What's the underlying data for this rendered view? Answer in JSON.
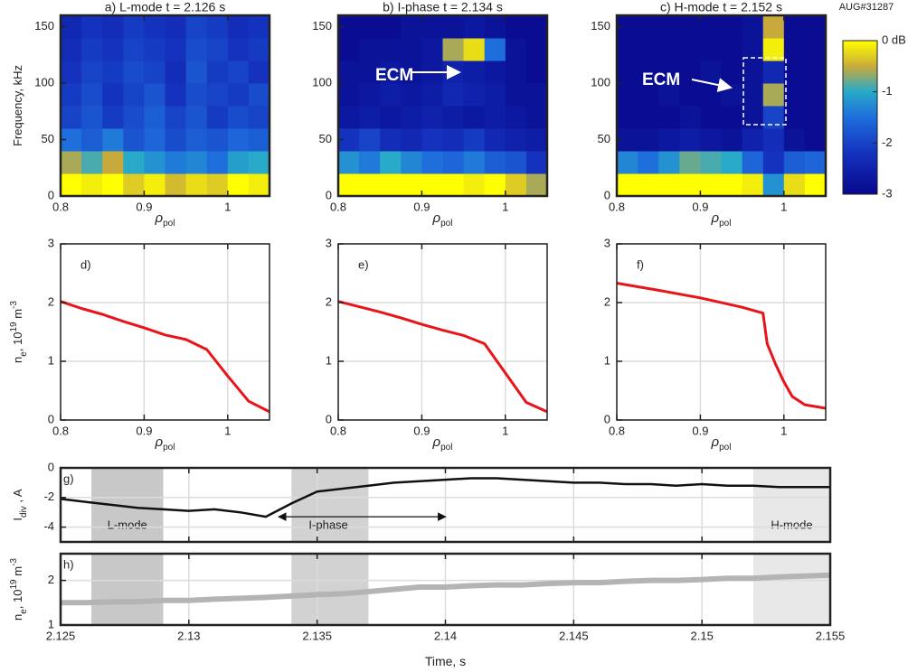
{
  "figure_note": "AUG#31287",
  "chart_data": [
    {
      "type": "heatmap",
      "title": "a) L-mode t = 2.126 s",
      "xlim": [
        0.8,
        1.05
      ],
      "ylim": [
        0,
        160
      ],
      "xticks": [
        0.8,
        0.9,
        1
      ],
      "yticks": [
        0,
        50,
        100,
        150
      ],
      "xlabel": [
        {
          "text": "ρ"
        },
        {
          "text": "pol",
          "sub": true
        }
      ],
      "ylabel": [
        {
          "text": "Frequency, kHz"
        }
      ],
      "z": [
        [
          0,
          -0.1,
          0,
          -0.3,
          -0.1,
          -0.4,
          -0.2,
          -0.3,
          0,
          -0.1
        ],
        [
          -0.6,
          -0.9,
          -0.5,
          -1.0,
          -1.2,
          -1.4,
          -1.3,
          -1.5,
          -1.1,
          -1.0
        ],
        [
          -1.5,
          -1.7,
          -1.4,
          -1.8,
          -1.6,
          -1.9,
          -1.7,
          -1.8,
          -1.6,
          -1.7
        ],
        [
          -2.0,
          -1.8,
          -2.1,
          -1.9,
          -1.7,
          -2.0,
          -1.8,
          -2.1,
          -1.9,
          -2.0
        ],
        [
          -2.1,
          -1.9,
          -2.2,
          -2.0,
          -1.8,
          -2.2,
          -1.9,
          -2.0,
          -2.1,
          -1.9
        ],
        [
          -2.2,
          -2.0,
          -2.1,
          -1.9,
          -2.0,
          -2.3,
          -1.8,
          -2.1,
          -2.0,
          -2.2
        ],
        [
          -2.3,
          -2.1,
          -2.2,
          -2.0,
          -2.1,
          -2.2,
          -1.9,
          -2.0,
          -2.2,
          -2.1
        ],
        [
          -2.4,
          -2.2,
          -2.3,
          -2.1,
          -2.2,
          -2.3,
          -2.0,
          -2.1,
          -2.3,
          -2.2
        ]
      ]
    },
    {
      "type": "heatmap",
      "title": "b) I-phase t = 2.134 s",
      "xlim": [
        0.8,
        1.05
      ],
      "ylim": [
        0,
        160
      ],
      "xticks": [
        0.8,
        0.9,
        1
      ],
      "yticks": [
        0,
        50,
        100,
        150
      ],
      "xlabel": [
        {
          "text": "ρ"
        },
        {
          "text": "pol",
          "sub": true
        }
      ],
      "annotations": [
        {
          "text": "ECM"
        }
      ],
      "z": [
        [
          0,
          0,
          0,
          0,
          0,
          0,
          -0.1,
          0,
          -0.3,
          -0.6
        ],
        [
          -1.2,
          -1.4,
          -1.0,
          -1.3,
          -1.5,
          -1.6,
          -1.4,
          -1.7,
          -1.8,
          -2.2
        ],
        [
          -2.2,
          -2.0,
          -2.3,
          -2.4,
          -2.2,
          -2.3,
          -2.1,
          -2.4,
          -2.5,
          -2.6
        ],
        [
          -2.7,
          -2.6,
          -2.7,
          -2.6,
          -2.5,
          -2.6,
          -2.7,
          -2.6,
          -2.7,
          -2.8
        ],
        [
          -2.8,
          -2.7,
          -2.6,
          -2.7,
          -2.6,
          -2.4,
          -2.5,
          -2.6,
          -2.8,
          -2.8
        ],
        [
          -2.8,
          -2.8,
          -2.7,
          -2.8,
          -2.7,
          -2.5,
          -2.6,
          -2.7,
          -2.8,
          -2.9
        ],
        [
          -2.9,
          -2.8,
          -2.8,
          -2.8,
          -2.7,
          -0.6,
          -0.2,
          -1.5,
          -2.8,
          -2.9
        ],
        [
          -2.9,
          -2.9,
          -2.9,
          -2.8,
          -2.8,
          -2.8,
          -2.7,
          -2.8,
          -2.9,
          -2.9
        ]
      ]
    },
    {
      "type": "heatmap",
      "title": "c) H-mode t = 2.152 s",
      "xlim": [
        0.8,
        1.05
      ],
      "ylim": [
        0,
        160
      ],
      "xticks": [
        0.8,
        0.9,
        1
      ],
      "yticks": [
        0,
        50,
        100,
        150
      ],
      "xlabel": [
        {
          "text": "ρ"
        },
        {
          "text": "pol",
          "sub": true
        }
      ],
      "annotations": [
        {
          "text": "ECM"
        }
      ],
      "z": [
        [
          0,
          0,
          0,
          0,
          0,
          0,
          -0.1,
          -1.2,
          -0.2,
          0
        ],
        [
          -1.3,
          -1.5,
          -1.2,
          -0.8,
          -0.9,
          -1.0,
          -1.6,
          -2.2,
          -1.7,
          -1.6
        ],
        [
          -2.8,
          -2.8,
          -2.7,
          -2.6,
          -2.7,
          -2.8,
          -2.5,
          -2.3,
          -2.8,
          -2.9
        ],
        [
          -2.9,
          -2.9,
          -2.9,
          -2.8,
          -2.9,
          -2.9,
          -2.8,
          -2.0,
          -2.9,
          -2.9
        ],
        [
          -2.9,
          -2.9,
          -2.8,
          -2.9,
          -2.9,
          -2.8,
          -2.8,
          -0.6,
          -2.9,
          -2.9
        ],
        [
          -2.9,
          -2.9,
          -2.9,
          -2.9,
          -2.8,
          -2.9,
          -2.8,
          -2.4,
          -2.9,
          -2.9
        ],
        [
          -2.9,
          -2.9,
          -2.9,
          -2.9,
          -2.9,
          -2.9,
          -2.8,
          -0.1,
          -2.9,
          -2.9
        ],
        [
          -2.9,
          -2.9,
          -2.9,
          -2.9,
          -2.9,
          -2.9,
          -2.8,
          -0.5,
          -2.9,
          -2.9
        ]
      ]
    },
    {
      "type": "colorbar",
      "ylim": [
        -3,
        0
      ],
      "yticks": [
        {
          "value": 0,
          "label": "0 dB"
        },
        -1,
        -2,
        -3
      ]
    },
    {
      "type": "line",
      "panel_label": "d)",
      "color": "#e8141a",
      "grid": true,
      "xlim": [
        0.8,
        1.05
      ],
      "ylim": [
        0,
        3
      ],
      "xticks": [
        0.8,
        0.9,
        1
      ],
      "yticks": [
        0,
        1,
        2,
        3
      ],
      "xlabel": [
        {
          "text": "ρ"
        },
        {
          "text": "pol",
          "sub": true
        }
      ],
      "ylabel": [
        {
          "text": "n"
        },
        {
          "text": "e",
          "sub": true
        },
        {
          "text": ", 10"
        },
        {
          "text": "19",
          "sup": true
        },
        {
          "text": " m"
        },
        {
          "text": "-3",
          "sup": true
        }
      ],
      "x": [
        0.8,
        0.825,
        0.85,
        0.875,
        0.9,
        0.925,
        0.95,
        0.975,
        1.0,
        1.025,
        1.05
      ],
      "values": [
        2.02,
        1.9,
        1.8,
        1.68,
        1.57,
        1.45,
        1.37,
        1.2,
        0.75,
        0.32,
        0.14
      ]
    },
    {
      "type": "line",
      "panel_label": "e)",
      "color": "#e8141a",
      "grid": true,
      "xlim": [
        0.8,
        1.05
      ],
      "ylim": [
        0,
        3
      ],
      "xticks": [
        0.8,
        0.9,
        1
      ],
      "yticks": [
        0,
        1,
        2,
        3
      ],
      "xlabel": [
        {
          "text": "ρ"
        },
        {
          "text": "pol",
          "sub": true
        }
      ],
      "x": [
        0.8,
        0.825,
        0.85,
        0.875,
        0.9,
        0.925,
        0.95,
        0.975,
        1.0,
        1.025,
        1.05
      ],
      "values": [
        2.02,
        1.93,
        1.84,
        1.74,
        1.63,
        1.53,
        1.44,
        1.3,
        0.8,
        0.3,
        0.14
      ]
    },
    {
      "type": "line",
      "panel_label": "f)",
      "color": "#e8141a",
      "grid": true,
      "xlim": [
        0.8,
        1.05
      ],
      "ylim": [
        0,
        3
      ],
      "xticks": [
        0.8,
        0.9,
        1
      ],
      "yticks": [
        0,
        1,
        2,
        3
      ],
      "xlabel": [
        {
          "text": "ρ"
        },
        {
          "text": "pol",
          "sub": true
        }
      ],
      "x": [
        0.8,
        0.85,
        0.9,
        0.95,
        0.975,
        0.98,
        0.99,
        1.0,
        1.01,
        1.025,
        1.05
      ],
      "values": [
        2.33,
        2.21,
        2.08,
        1.92,
        1.82,
        1.3,
        0.95,
        0.65,
        0.4,
        0.26,
        0.2
      ]
    },
    {
      "type": "line",
      "panel_label": "g)",
      "color": "#111111",
      "grid": true,
      "xlim": [
        2.125,
        2.155
      ],
      "ylim": [
        -5,
        0
      ],
      "xticks": [
        2.125,
        2.13,
        2.135,
        2.14,
        2.145,
        2.15,
        2.155
      ],
      "xtick_labels": false,
      "yticks": [
        0,
        -2,
        -4
      ],
      "ylabel": [
        {
          "text": "I"
        },
        {
          "text": "div",
          "sub": true
        },
        {
          "text": " , A"
        }
      ],
      "spans": [
        {
          "start": 2.1262,
          "end": 2.129,
          "label": "L-mode",
          "color": "#c8c8c8"
        },
        {
          "start": 2.134,
          "end": 2.137,
          "color": "#d2d2d2"
        },
        {
          "start": 2.152,
          "end": 2.155,
          "label": "H-mode",
          "color": "#e8e8e8"
        }
      ],
      "arrow": {
        "from": 2.1335,
        "to": 2.14,
        "at": -3.3,
        "label": "I-phase"
      },
      "x": [
        2.125,
        2.126,
        2.127,
        2.128,
        2.129,
        2.13,
        2.131,
        2.132,
        2.133,
        2.134,
        2.135,
        2.136,
        2.137,
        2.138,
        2.139,
        2.14,
        2.141,
        2.142,
        2.143,
        2.144,
        2.145,
        2.146,
        2.147,
        2.148,
        2.149,
        2.15,
        2.151,
        2.152,
        2.153,
        2.154,
        2.155
      ],
      "values": [
        -2.1,
        -2.3,
        -2.5,
        -2.7,
        -2.8,
        -2.9,
        -2.8,
        -3.0,
        -3.3,
        -2.4,
        -1.6,
        -1.4,
        -1.2,
        -1.0,
        -0.9,
        -0.8,
        -0.7,
        -0.7,
        -0.8,
        -0.9,
        -1.0,
        -1.0,
        -1.1,
        -1.1,
        -1.2,
        -1.1,
        -1.2,
        -1.2,
        -1.3,
        -1.3,
        -1.3
      ]
    },
    {
      "type": "line",
      "panel_label": "h)",
      "color": "#b4b4b4",
      "grid": true,
      "xlim": [
        2.125,
        2.155
      ],
      "ylim": [
        1,
        2.6
      ],
      "xticks": [
        2.125,
        2.13,
        2.135,
        2.14,
        2.145,
        2.15,
        2.155
      ],
      "yticks": [
        1,
        2
      ],
      "xlabel": [
        {
          "text": "Time, s"
        }
      ],
      "ylabel": [
        {
          "text": "n"
        },
        {
          "text": "e",
          "sub": true
        },
        {
          "text": ", 10"
        },
        {
          "text": "19",
          "sup": true
        },
        {
          "text": " m"
        },
        {
          "text": "-3",
          "sup": true
        }
      ],
      "spans": [
        {
          "start": 2.1262,
          "end": 2.129,
          "color": "#c8c8c8"
        },
        {
          "start": 2.134,
          "end": 2.137,
          "color": "#d2d2d2"
        },
        {
          "start": 2.152,
          "end": 2.155,
          "color": "#e8e8e8"
        }
      ],
      "x": [
        2.125,
        2.126,
        2.127,
        2.128,
        2.129,
        2.13,
        2.131,
        2.132,
        2.133,
        2.134,
        2.135,
        2.136,
        2.137,
        2.138,
        2.139,
        2.14,
        2.141,
        2.142,
        2.143,
        2.144,
        2.145,
        2.146,
        2.147,
        2.148,
        2.149,
        2.15,
        2.151,
        2.152,
        2.153,
        2.154,
        2.155
      ],
      "values": [
        1.5,
        1.5,
        1.52,
        1.52,
        1.55,
        1.55,
        1.58,
        1.6,
        1.62,
        1.65,
        1.68,
        1.7,
        1.75,
        1.8,
        1.85,
        1.85,
        1.88,
        1.9,
        1.9,
        1.93,
        1.95,
        1.95,
        1.98,
        2.0,
        2.0,
        2.02,
        2.05,
        2.05,
        2.08,
        2.1,
        2.12
      ]
    }
  ]
}
